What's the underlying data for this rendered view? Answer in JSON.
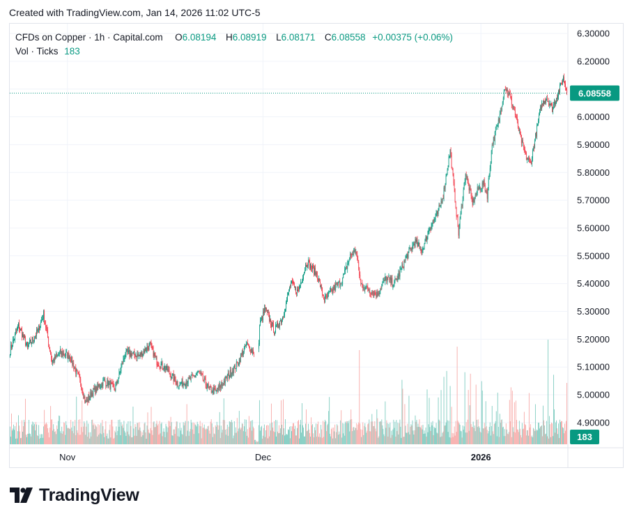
{
  "header": {
    "created": "Created with TradingView.com, Jan 14, 2026 11:02 UTC-5"
  },
  "legend": {
    "symbol": "CFDs on Copper · 1h · Capital.com",
    "o_label": "O",
    "o_value": "6.08194",
    "h_label": "H",
    "h_value": "6.08919",
    "l_label": "L",
    "l_value": "6.08171",
    "c_label": "C",
    "c_value": "6.08558",
    "change": "+0.00375 (+0.06%)",
    "vol_label": "Vol · Ticks",
    "vol_value": "183"
  },
  "colors": {
    "up": "#089981",
    "down": "#f23645",
    "up_vol": "#7fccc0",
    "down_vol": "#f7a9a7",
    "grid": "#f0f3fa",
    "price_tag": "#089981"
  },
  "chart_data": {
    "type": "candlestick",
    "title": "CFDs on Copper · 1h · Capital.com",
    "ylim": [
      4.85,
      6.32
    ],
    "yticks": [
      "6.30000",
      "6.20000",
      "6.10000",
      "6.00000",
      "5.90000",
      "5.80000",
      "5.70000",
      "5.60000",
      "5.50000",
      "5.40000",
      "5.30000",
      "5.20000",
      "5.10000",
      "5.00000",
      "4.90000"
    ],
    "ytick_values": [
      6.3,
      6.2,
      6.1,
      6.0,
      5.9,
      5.8,
      5.7,
      5.6,
      5.5,
      5.4,
      5.3,
      5.2,
      5.1,
      5.0,
      4.9
    ],
    "xticks": [
      {
        "label": "Nov",
        "index": 82,
        "bold": false
      },
      {
        "label": "Dec",
        "index": 362,
        "bold": false
      },
      {
        "label": "2026",
        "index": 674,
        "bold": true
      }
    ],
    "bar_count": 798,
    "close_path": [
      [
        0,
        5.16
      ],
      [
        12,
        5.25
      ],
      [
        25,
        5.17
      ],
      [
        40,
        5.23
      ],
      [
        48,
        5.29
      ],
      [
        60,
        5.12
      ],
      [
        72,
        5.15
      ],
      [
        85,
        5.14
      ],
      [
        100,
        5.05
      ],
      [
        108,
        4.97
      ],
      [
        118,
        5.01
      ],
      [
        135,
        5.05
      ],
      [
        150,
        5.02
      ],
      [
        165,
        5.15
      ],
      [
        185,
        5.14
      ],
      [
        200,
        5.18
      ],
      [
        210,
        5.12
      ],
      [
        225,
        5.09
      ],
      [
        240,
        5.04
      ],
      [
        255,
        5.05
      ],
      [
        270,
        5.08
      ],
      [
        285,
        5.02
      ],
      [
        295,
        5.01
      ],
      [
        310,
        5.06
      ],
      [
        325,
        5.11
      ],
      [
        338,
        5.18
      ],
      [
        350,
        5.15
      ],
      [
        356,
        5.18
      ],
      [
        357,
        5.25
      ],
      [
        365,
        5.31
      ],
      [
        378,
        5.23
      ],
      [
        390,
        5.28
      ],
      [
        402,
        5.4
      ],
      [
        412,
        5.37
      ],
      [
        425,
        5.48
      ],
      [
        440,
        5.43
      ],
      [
        450,
        5.34
      ],
      [
        462,
        5.38
      ],
      [
        475,
        5.41
      ],
      [
        487,
        5.5
      ],
      [
        495,
        5.52
      ],
      [
        502,
        5.4
      ],
      [
        512,
        5.38
      ],
      [
        525,
        5.36
      ],
      [
        538,
        5.42
      ],
      [
        550,
        5.4
      ],
      [
        558,
        5.44
      ],
      [
        568,
        5.5
      ],
      [
        580,
        5.55
      ],
      [
        590,
        5.52
      ],
      [
        600,
        5.6
      ],
      [
        612,
        5.65
      ],
      [
        620,
        5.72
      ],
      [
        630,
        5.88
      ],
      [
        634,
        5.78
      ],
      [
        642,
        5.58
      ],
      [
        652,
        5.8
      ],
      [
        662,
        5.69
      ],
      [
        670,
        5.74
      ],
      [
        678,
        5.76
      ],
      [
        683,
        5.72
      ],
      [
        690,
        5.9
      ],
      [
        700,
        5.99
      ],
      [
        708,
        6.11
      ],
      [
        716,
        6.07
      ],
      [
        722,
        6.02
      ],
      [
        730,
        5.93
      ],
      [
        738,
        5.86
      ],
      [
        745,
        5.83
      ],
      [
        752,
        5.93
      ],
      [
        760,
        6.04
      ],
      [
        768,
        6.07
      ],
      [
        776,
        6.03
      ],
      [
        785,
        6.09
      ],
      [
        792,
        6.14
      ],
      [
        797,
        6.09
      ]
    ],
    "last_price": "6.08558",
    "last_price_value": 6.08558,
    "volume_last": "183"
  }
}
